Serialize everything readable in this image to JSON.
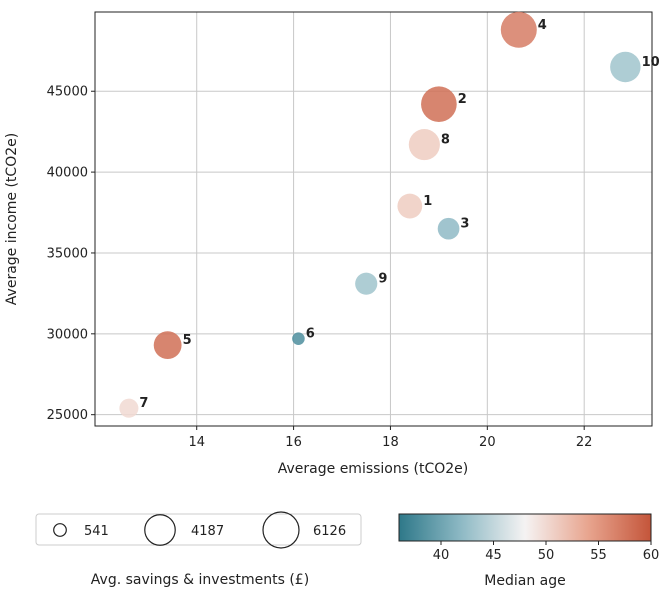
{
  "chart_data": {
    "type": "scatter",
    "xlabel": "Average emissions (tCO2e)",
    "ylabel": "Average income (tCO2e)",
    "xlim": [
      11.9,
      23.4
    ],
    "ylim": [
      24300,
      49900
    ],
    "xticks": [
      14,
      16,
      18,
      20,
      22
    ],
    "yticks": [
      25000,
      30000,
      35000,
      40000,
      45000
    ],
    "grid": true,
    "points": [
      {
        "label": "1",
        "x": 18.4,
        "y": 37900,
        "size": 2600,
        "age": 51
      },
      {
        "label": "2",
        "x": 19.0,
        "y": 44200,
        "size": 6000,
        "age": 58
      },
      {
        "label": "3",
        "x": 19.2,
        "y": 36500,
        "size": 1900,
        "age": 42
      },
      {
        "label": "4",
        "x": 20.65,
        "y": 48800,
        "size": 6126,
        "age": 57
      },
      {
        "label": "5",
        "x": 13.4,
        "y": 29300,
        "size": 3400,
        "age": 58
      },
      {
        "label": "6",
        "x": 16.1,
        "y": 29700,
        "size": 541,
        "age": 38
      },
      {
        "label": "7",
        "x": 12.6,
        "y": 25400,
        "size": 1400,
        "age": 50
      },
      {
        "label": "8",
        "x": 18.7,
        "y": 41700,
        "size": 4400,
        "age": 51
      },
      {
        "label": "9",
        "x": 17.5,
        "y": 33100,
        "size": 2000,
        "age": 43
      },
      {
        "label": "10",
        "x": 22.85,
        "y": 46500,
        "size": 4187,
        "age": 43
      }
    ],
    "size_legend": {
      "title": "Avg. savings & investments (£)",
      "entries": [
        {
          "label": "541",
          "value": 541
        },
        {
          "label": "4187",
          "value": 4187
        },
        {
          "label": "6126",
          "value": 6126
        }
      ]
    },
    "colorbar": {
      "title": "Median age",
      "range": [
        36,
        60
      ],
      "ticks": [
        40,
        45,
        50,
        55,
        60
      ],
      "colors": [
        "#2e7889",
        "#8fbac5",
        "#f5f3f3",
        "#e8a58f",
        "#c4553a"
      ]
    }
  }
}
